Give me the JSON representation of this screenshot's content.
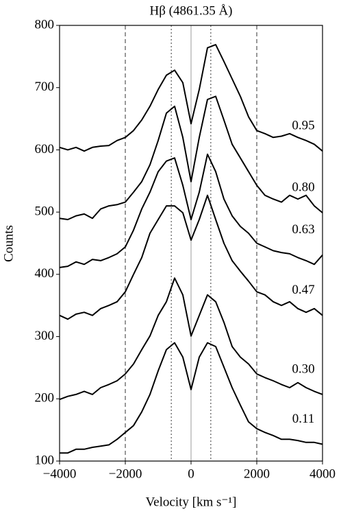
{
  "chart_data": {
    "type": "line",
    "title": "Hβ (4861.35 Å)",
    "x_label": "Velocity [km s⁻¹]",
    "y_label": "Counts",
    "x": [
      -4000,
      -3750,
      -3500,
      -3250,
      -3000,
      -2750,
      -2500,
      -2250,
      -2000,
      -1750,
      -1500,
      -1250,
      -1000,
      -750,
      -500,
      -250,
      0,
      250,
      500,
      750,
      1000,
      1250,
      1500,
      1750,
      2000,
      2250,
      2500,
      2750,
      3000,
      3250,
      3500,
      3750,
      4000
    ],
    "series": [
      {
        "name": "0.95",
        "color": "#000000",
        "values": [
          604,
          600,
          604,
          598,
          604,
          606,
          607,
          615,
          620,
          631,
          648,
          670,
          697,
          720,
          728,
          708,
          642,
          697,
          764,
          769,
          742,
          714,
          686,
          653,
          631,
          626,
          620,
          622,
          626,
          620,
          615,
          609,
          598
        ]
      },
      {
        "name": "0.80",
        "color": "#000000",
        "values": [
          490,
          488,
          494,
          497,
          490,
          505,
          510,
          512,
          516,
          532,
          549,
          576,
          615,
          659,
          670,
          620,
          549,
          620,
          681,
          686,
          648,
          609,
          587,
          565,
          543,
          527,
          521,
          516,
          527,
          521,
          527,
          510,
          499
        ]
      },
      {
        "name": "0.63",
        "color": "#000000",
        "values": [
          411,
          413,
          420,
          416,
          424,
          422,
          427,
          433,
          444,
          471,
          505,
          532,
          565,
          582,
          587,
          543,
          488,
          532,
          593,
          565,
          521,
          494,
          477,
          466,
          450,
          444,
          438,
          435,
          433,
          427,
          422,
          416,
          431
        ]
      },
      {
        "name": "0.47",
        "color": "#000000",
        "values": [
          334,
          328,
          336,
          339,
          334,
          345,
          350,
          356,
          372,
          400,
          427,
          466,
          488,
          510,
          510,
          499,
          455,
          488,
          527,
          488,
          450,
          422,
          405,
          389,
          372,
          367,
          356,
          350,
          356,
          345,
          339,
          345,
          334
        ]
      },
      {
        "name": "0.30",
        "color": "#000000",
        "values": [
          199,
          204,
          207,
          212,
          207,
          218,
          223,
          229,
          240,
          256,
          279,
          301,
          334,
          356,
          394,
          367,
          301,
          334,
          367,
          356,
          323,
          284,
          267,
          256,
          240,
          234,
          229,
          223,
          218,
          226,
          218,
          212,
          207
        ]
      },
      {
        "name": "0.11",
        "color": "#000000",
        "values": [
          113,
          113,
          119,
          119,
          122,
          124,
          126,
          135,
          146,
          157,
          179,
          207,
          245,
          279,
          290,
          267,
          215,
          267,
          290,
          284,
          251,
          218,
          190,
          163,
          152,
          146,
          141,
          135,
          135,
          133,
          130,
          130,
          127
        ]
      }
    ],
    "vlines": [
      {
        "x": -2000,
        "style": "dashed"
      },
      {
        "x": -600,
        "style": "dotted"
      },
      {
        "x": 0,
        "style": "solid"
      },
      {
        "x": 600,
        "style": "dotted"
      },
      {
        "x": 2000,
        "style": "dashed"
      }
    ],
    "xlim": [
      -4000,
      4000
    ],
    "ylim": [
      100,
      800
    ],
    "xticks": [
      {
        "value": -4000,
        "label": "−4000"
      },
      {
        "value": -2000,
        "label": "−2000"
      },
      0,
      2000,
      4000
    ],
    "yticks": [
      100,
      200,
      300,
      400,
      500,
      600,
      700,
      800
    ]
  }
}
